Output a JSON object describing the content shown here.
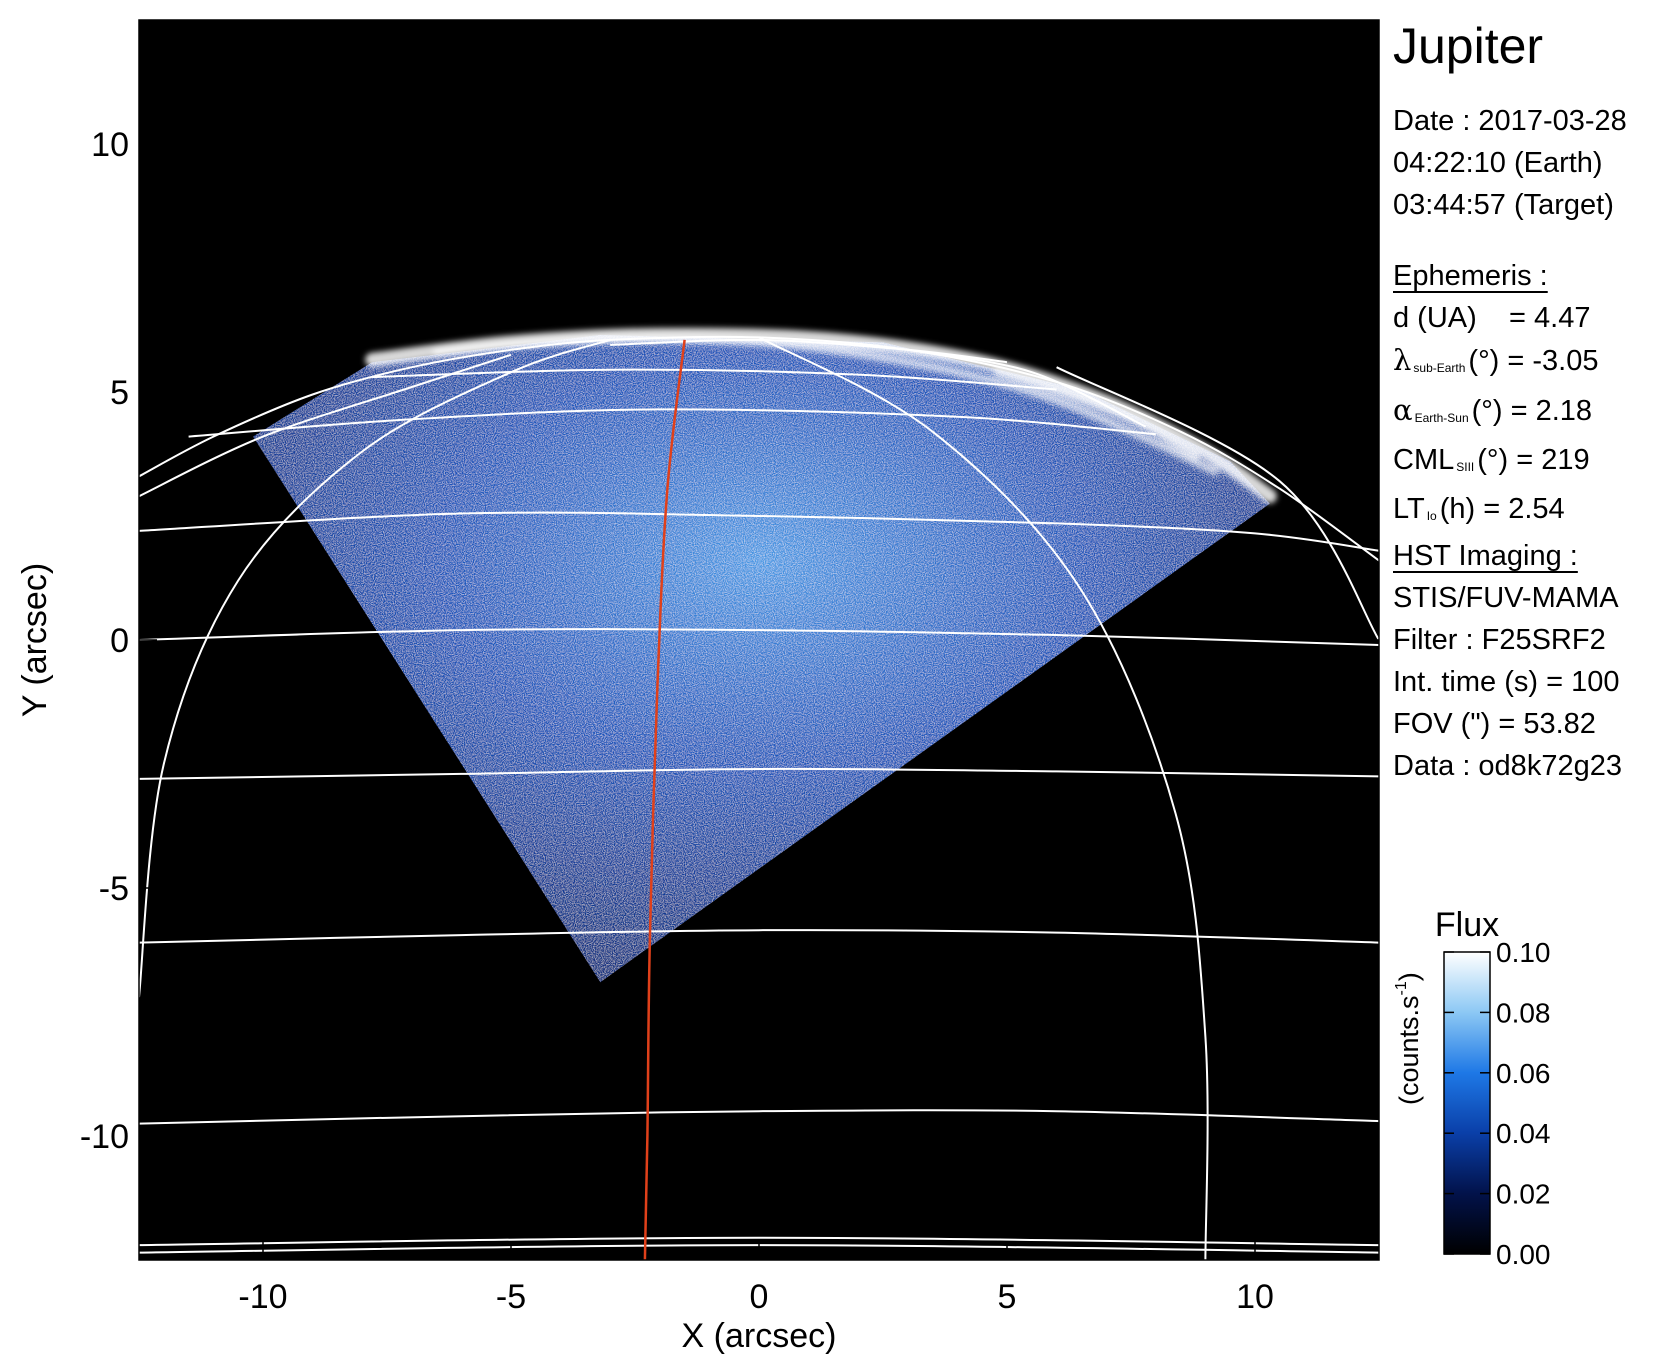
{
  "title": "Jupiter",
  "observation": {
    "date_line": "Date : 2017-03-28",
    "time_earth": "04:22:10 (Earth)",
    "time_target": "03:44:57 (Target)"
  },
  "ephemeris": {
    "heading": "Ephemeris :",
    "distance": {
      "label": "d (UA)",
      "value": "= 4.47"
    },
    "sub_earth_lat": {
      "symbol": "λ",
      "sub": "sub-Earth",
      "unit": "(°)",
      "value": "= -3.05"
    },
    "phase_angle": {
      "symbol": "α",
      "sub": "Earth-Sun",
      "unit": "(°)",
      "value": "= 2.18"
    },
    "cml": {
      "symbol": "CML",
      "sub": "SIII",
      "unit": "(°)",
      "value": "= 219"
    },
    "local_time": {
      "symbol": "LT",
      "sub": "Io",
      "unit": "(h)",
      "value": "= 2.54"
    }
  },
  "imaging": {
    "heading": "HST Imaging :",
    "instrument": "STIS/FUV-MAMA",
    "filter": "Filter : F25SRF2",
    "int_time": "Int. time (s) = 100",
    "fov": "FOV (\") = 53.82",
    "dataset": "Data : od8k72g23"
  },
  "colorbar": {
    "title": "Flux",
    "unit_label": "(counts.s",
    "unit_exp": "-1",
    "unit_close": ")",
    "min": 0.0,
    "max": 0.1,
    "ticks": [
      {
        "value": 0.0,
        "label": "0.00"
      },
      {
        "value": 0.02,
        "label": "0.02"
      },
      {
        "value": 0.04,
        "label": "0.04"
      },
      {
        "value": 0.06,
        "label": "0.06"
      },
      {
        "value": 0.08,
        "label": "0.08"
      },
      {
        "value": 0.1,
        "label": "0.10"
      }
    ],
    "colors": [
      "#000000",
      "#02124a",
      "#0a3fa8",
      "#1e78e6",
      "#8cc8f4",
      "#ffffff"
    ]
  },
  "chart_data": {
    "type": "image",
    "xlabel": "X (arcsec)",
    "ylabel": "Y (arcsec)",
    "xlim": [
      -12.5,
      12.5
    ],
    "ylim": [
      -12.5,
      12.5
    ],
    "xticks": [
      {
        "value": -10,
        "label": "-10"
      },
      {
        "value": -5,
        "label": "-5"
      },
      {
        "value": 0,
        "label": "0"
      },
      {
        "value": 5,
        "label": "5"
      },
      {
        "value": 10,
        "label": "10"
      }
    ],
    "yticks": [
      {
        "value": -10,
        "label": "-10"
      },
      {
        "value": -5,
        "label": "-5"
      },
      {
        "value": 0,
        "label": "0"
      },
      {
        "value": 5,
        "label": "5"
      },
      {
        "value": 10,
        "label": "10"
      }
    ],
    "background_color": "#000000",
    "grid_color": "#ffffff",
    "highlight_meridian_color": "#e0401a",
    "latitude_lines": [
      [
        [
          -12.5,
          2.2
        ],
        [
          -6,
          2.55
        ],
        [
          0,
          2.5
        ],
        [
          6,
          2.35
        ],
        [
          10,
          2.15
        ],
        [
          12.5,
          1.8
        ]
      ],
      [
        [
          -12.5,
          0.0
        ],
        [
          -6,
          0.2
        ],
        [
          0,
          0.2
        ],
        [
          6,
          0.1
        ],
        [
          12.5,
          -0.1
        ]
      ],
      [
        [
          -12.5,
          -2.8
        ],
        [
          -6,
          -2.7
        ],
        [
          0,
          -2.6
        ],
        [
          6,
          -2.65
        ],
        [
          12.5,
          -2.75
        ]
      ],
      [
        [
          -12.5,
          -6.1
        ],
        [
          -6,
          -5.95
        ],
        [
          0,
          -5.85
        ],
        [
          6,
          -5.9
        ],
        [
          12.5,
          -6.1
        ]
      ],
      [
        [
          -12.5,
          -9.75
        ],
        [
          -6,
          -9.6
        ],
        [
          0,
          -9.5
        ],
        [
          6,
          -9.5
        ],
        [
          12.5,
          -9.7
        ]
      ],
      [
        [
          -12.5,
          -12.2
        ],
        [
          0,
          -12.05
        ],
        [
          12.5,
          -12.2
        ]
      ],
      [
        [
          -12.5,
          -12.35
        ],
        [
          0,
          -12.2
        ],
        [
          12.5,
          -12.35
        ]
      ],
      [
        [
          -11.5,
          4.1
        ],
        [
          -7,
          4.45
        ],
        [
          -2,
          4.65
        ],
        [
          4,
          4.5
        ],
        [
          8,
          4.15
        ]
      ],
      [
        [
          -7.8,
          5.3
        ],
        [
          -3,
          5.45
        ],
        [
          2,
          5.35
        ],
        [
          6,
          5.05
        ]
      ],
      [
        [
          -3,
          5.95
        ],
        [
          0,
          6.05
        ],
        [
          3,
          5.85
        ],
        [
          5,
          5.6
        ]
      ]
    ],
    "limb_outline": [
      [
        -12.5,
        3.3
      ],
      [
        -11,
        4.1
      ],
      [
        -9,
        4.95
      ],
      [
        -7,
        5.5
      ],
      [
        -5,
        5.85
      ],
      [
        -3,
        6.05
      ],
      [
        0,
        6.1
      ],
      [
        3,
        5.85
      ],
      [
        6,
        5.2
      ],
      [
        8.5,
        4.2
      ],
      [
        10.5,
        3.05
      ],
      [
        12.5,
        1.6
      ]
    ],
    "meridians": [
      [
        [
          -12.5,
          -7.2
        ],
        [
          -12,
          -2.5
        ],
        [
          -10.5,
          1.2
        ],
        [
          -8,
          3.8
        ],
        [
          -5,
          5.4
        ],
        [
          -3,
          6.05
        ]
      ],
      [
        [
          -12.5,
          2.9
        ],
        [
          -10,
          4.1
        ],
        [
          -7,
          5.1
        ],
        [
          -5,
          5.75
        ]
      ],
      [
        [
          0,
          6.1
        ],
        [
          3.5,
          4.2
        ],
        [
          6.5,
          1.0
        ],
        [
          8.4,
          -3.5
        ],
        [
          9.0,
          -8.0
        ],
        [
          9.0,
          -12.5
        ]
      ],
      [
        [
          3,
          5.85
        ],
        [
          5.5,
          5.4
        ],
        [
          7.8,
          4.3
        ]
      ],
      [
        [
          6,
          5.5
        ],
        [
          10.5,
          3.2
        ],
        [
          12.5,
          0.0
        ]
      ]
    ],
    "reference_meridian": [
      [
        -1.5,
        6.05
      ],
      [
        -1.85,
        3.0
      ],
      [
        -2.05,
        -1.0
      ],
      [
        -2.2,
        -6.0
      ],
      [
        -2.25,
        -10.0
      ],
      [
        -2.3,
        -12.5
      ]
    ],
    "observed_region": [
      [
        -7.8,
        5.6
      ],
      [
        -3.2,
        6.15
      ],
      [
        2.5,
        6.0
      ],
      [
        6.5,
        5.05
      ],
      [
        9.5,
        3.6
      ],
      [
        10.3,
        2.75
      ],
      [
        -3.2,
        -6.9
      ],
      [
        -10.2,
        4.1
      ]
    ]
  }
}
